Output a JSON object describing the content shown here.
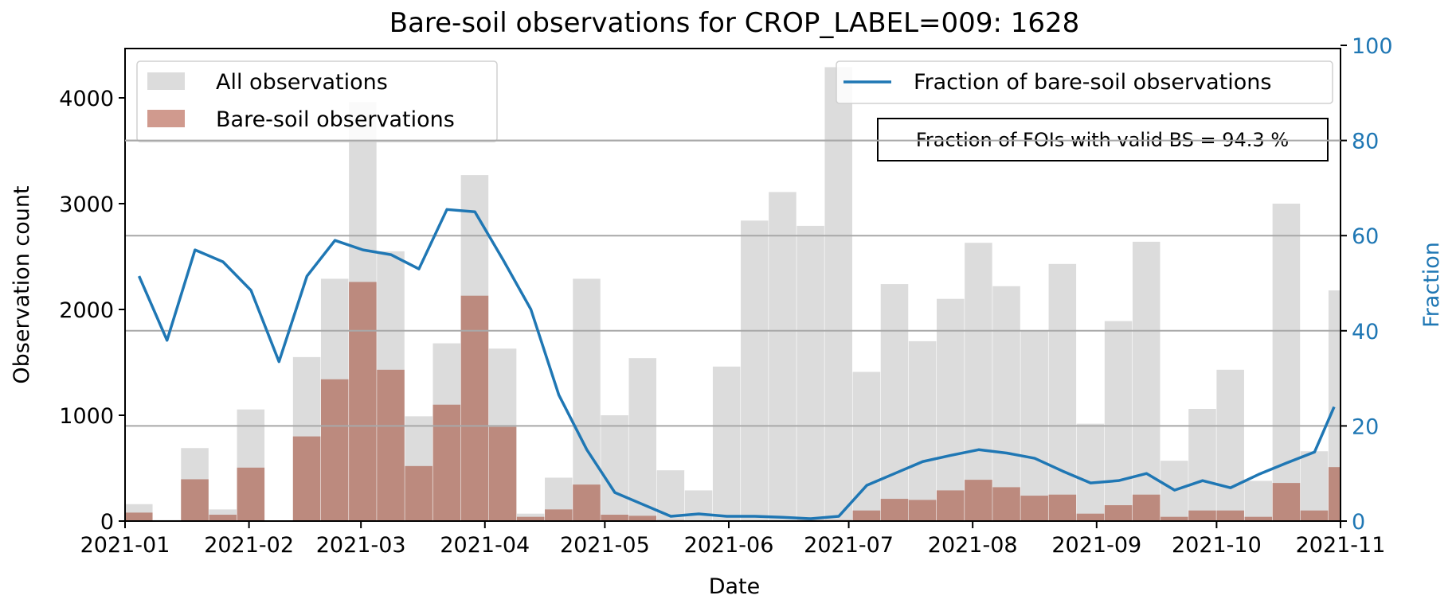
{
  "chart_data": {
    "type": "bar",
    "title": "Bare-soil observations for CROP_LABEL=009: 1628",
    "xlabel": "Date",
    "ylabel": "Observation count",
    "ylabel_right": "Fraction",
    "x_start": "2021-01-01",
    "x_end": "2021-11-01",
    "bin_days": 7,
    "ylim": [
      0,
      4500
    ],
    "ylim_right": [
      0,
      100
    ],
    "yticks": [
      0,
      1000,
      2000,
      3000,
      4000
    ],
    "yticks_right": [
      0,
      20,
      40,
      60,
      80,
      100
    ],
    "xticks": [
      {
        "date": "2021-01-01",
        "label": "2021-01"
      },
      {
        "date": "2021-02-01",
        "label": "2021-02"
      },
      {
        "date": "2021-03-01",
        "label": "2021-03"
      },
      {
        "date": "2021-04-01",
        "label": "2021-04"
      },
      {
        "date": "2021-05-01",
        "label": "2021-05"
      },
      {
        "date": "2021-06-01",
        "label": "2021-06"
      },
      {
        "date": "2021-07-01",
        "label": "2021-07"
      },
      {
        "date": "2021-08-01",
        "label": "2021-08"
      },
      {
        "date": "2021-09-01",
        "label": "2021-09"
      },
      {
        "date": "2021-10-01",
        "label": "2021-10"
      },
      {
        "date": "2021-11-01",
        "label": "2021-11"
      }
    ],
    "grid": "horizontal lines at right-axis ticks",
    "series": [
      {
        "name": "All observations",
        "kind": "bar",
        "color": "#dcdcdc",
        "values": [
          160,
          10,
          690,
          110,
          1055,
          0,
          1550,
          2290,
          3960,
          2550,
          990,
          1680,
          3270,
          1630,
          70,
          410,
          2290,
          1000,
          1540,
          480,
          290,
          1460,
          2840,
          3110,
          2790,
          4290,
          1410,
          2240,
          1700,
          2100,
          2630,
          2220,
          1800,
          2430,
          920,
          1890,
          2640,
          570,
          1060,
          1430,
          380,
          3000,
          660,
          2180
        ]
      },
      {
        "name": "Bare-soil observations",
        "kind": "bar",
        "color": "#bc8a7e",
        "legend_color": "#d09a8e",
        "values": [
          80,
          0,
          395,
          60,
          505,
          0,
          800,
          1340,
          2260,
          1430,
          520,
          1100,
          2130,
          890,
          40,
          110,
          345,
          60,
          50,
          10,
          5,
          5,
          5,
          5,
          10,
          10,
          100,
          210,
          200,
          290,
          390,
          320,
          240,
          250,
          70,
          150,
          250,
          40,
          100,
          100,
          40,
          360,
          100,
          510
        ]
      },
      {
        "name": "Fraction of bare-soil observations",
        "kind": "line",
        "axis": "right",
        "color": "#1f77b4",
        "values": [
          51.5,
          38,
          57,
          54.5,
          48.5,
          33.5,
          51.5,
          59,
          57,
          56,
          53,
          65.5,
          65,
          55,
          44.5,
          26.5,
          15,
          6,
          3.5,
          1,
          1.5,
          1,
          1,
          0.8,
          0.5,
          1,
          7.5,
          10,
          12.5,
          13.8,
          15,
          14.3,
          13.2,
          10.5,
          8,
          8.5,
          10,
          6.5,
          8.5,
          7,
          9.8,
          12.2,
          14.5,
          24
        ]
      }
    ],
    "legend_left": {
      "placement": "upper-left",
      "entries": [
        "All observations",
        "Bare-soil observations"
      ]
    },
    "legend_right": {
      "placement": "upper-right",
      "entries": [
        "Fraction of bare-soil observations"
      ]
    },
    "annotation": "Fraction of FOIs with valid BS = 94.3 %"
  }
}
